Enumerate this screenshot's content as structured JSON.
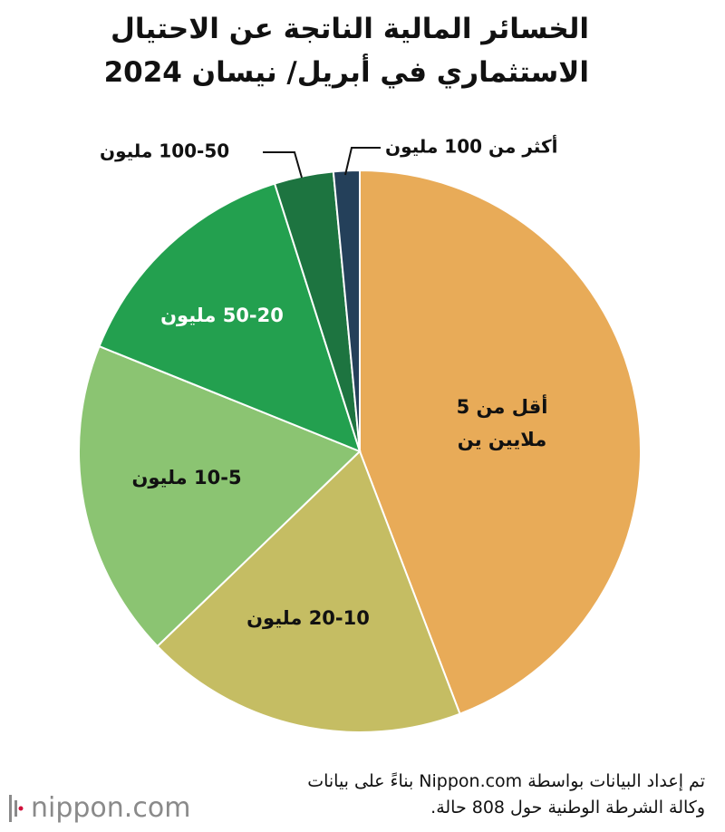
{
  "title": {
    "line1": "الخسائر المالية الناتجة عن الاحتيال",
    "line2": "الاستثماري في أبريل/ نيسان 2024"
  },
  "source": {
    "line1": "تم إعداد البيانات بواسطة Nippon.com بناءً على بيانات",
    "line2": "وكالة الشرطة الوطنية حول 808 حالة."
  },
  "logo": {
    "text": "nippon.com",
    "accent_color": "#d0103a"
  },
  "chart_data": {
    "type": "pie",
    "title": "الخسائر المالية الناتجة عن الاحتيال الاستثماري في أبريل/ نيسان 2024",
    "start": "12 o'clock",
    "direction": "clockwise",
    "slices": [
      {
        "label_lines": [
          "أقل من 5",
          "ملايين ين"
        ],
        "value": 44.2,
        "color": "#e8ab58",
        "label_color": "#111111"
      },
      {
        "label_lines": [
          "20-10 مليون"
        ],
        "value": 18.6,
        "color": "#c5bd63",
        "label_color": "#111111"
      },
      {
        "label_lines": [
          "10-5 مليون"
        ],
        "value": 18.3,
        "color": "#8bc472",
        "label_color": "#111111"
      },
      {
        "label_lines": [
          "50-20 مليون"
        ],
        "value": 14.0,
        "color": "#23a04f",
        "label_color": "#ffffff"
      },
      {
        "label_lines": [
          "100-50 مليون"
        ],
        "value": 3.4,
        "color": "#1d7440",
        "label_color": "#111111"
      },
      {
        "label_lines": [
          "أكثر من 100 مليون"
        ],
        "value": 1.5,
        "color": "#24405a",
        "label_color": "#111111"
      }
    ]
  }
}
